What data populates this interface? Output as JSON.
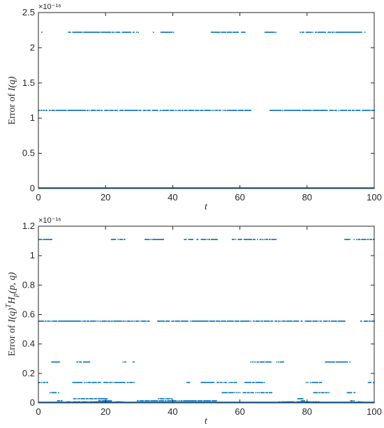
{
  "chart_data": [
    {
      "type": "scatter",
      "xlabel": "t",
      "ylabel": "Error of I(q)",
      "ylabel_parts": {
        "prefix": "Error of ",
        "sym": "I",
        "args": "(q)"
      },
      "xlim": [
        0,
        100
      ],
      "ylim": [
        0,
        2.5
      ],
      "scale_exponent": "×10⁻¹⁶",
      "x_ticks": [
        "0",
        "20",
        "40",
        "60",
        "80",
        "100"
      ],
      "y_ticks": [
        "0",
        "0.5",
        "1",
        "1.5",
        "2",
        "2.5"
      ],
      "color": "#0072BD",
      "levels": [
        0,
        1.11,
        2.22
      ],
      "level_density": [
        1.0,
        0.92,
        0.55
      ],
      "x_step": 0.25
    },
    {
      "type": "scatter",
      "xlabel": "t",
      "ylabel": "Error of I(q)ᵀHₚ(p, q)",
      "ylabel_parts": {
        "prefix": "Error of ",
        "sym": "I",
        "args": "(q)",
        "sup": "T",
        "sym2": "H",
        "sub": "p",
        "args2": "(p, q)"
      },
      "xlim": [
        0,
        100
      ],
      "ylim": [
        0,
        1.2
      ],
      "scale_exponent": "×10⁻¹⁶",
      "x_ticks": [
        "0",
        "20",
        "40",
        "60",
        "80",
        "100"
      ],
      "y_ticks": [
        "0",
        "0.2",
        "0.4",
        "0.6",
        "0.8",
        "1",
        "1.2"
      ],
      "color": "#0072BD",
      "levels": [
        0,
        0.0069,
        0.0139,
        0.0278,
        0.0694,
        0.1388,
        0.2776,
        0.5551,
        1.1102
      ],
      "level_density": [
        1.0,
        0.35,
        0.3,
        0.25,
        0.3,
        0.35,
        0.45,
        0.8,
        0.45
      ],
      "x_step": 0.25
    }
  ]
}
